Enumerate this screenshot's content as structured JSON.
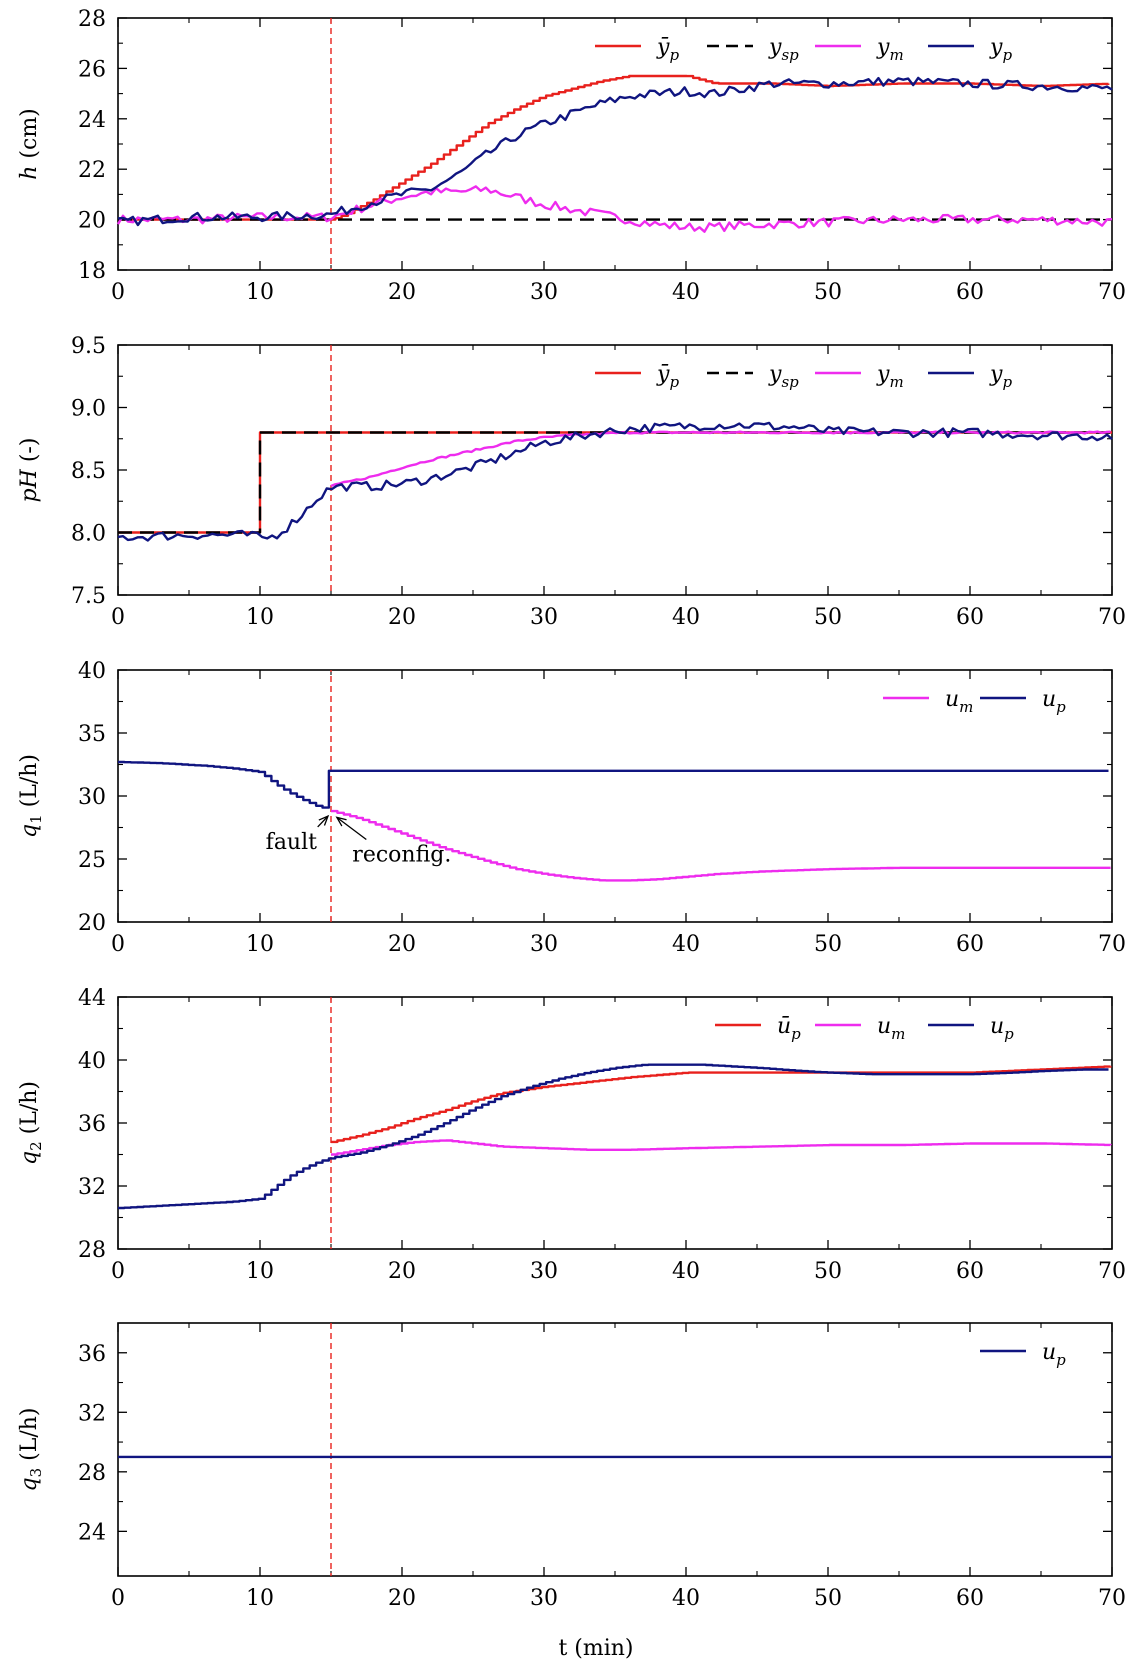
{
  "xlabel": "t (min)",
  "fault_time": 15,
  "colors": {
    "y_bar_p": "#e8211d",
    "y_sp": "#000000",
    "y_m": "#ee2cee",
    "y_p": "#101580",
    "fault_line": "#e8211d",
    "axis": "#000000"
  },
  "chart_data": [
    {
      "type": "line",
      "ylabel": "h (cm)",
      "xlim": [
        0,
        70
      ],
      "ylim": [
        18,
        28
      ],
      "xticks": [
        0,
        10,
        20,
        30,
        40,
        50,
        60,
        70
      ],
      "yticks": [
        18,
        20,
        22,
        24,
        26,
        28
      ],
      "fault_marker": true,
      "series": [
        {
          "name": "ȳp",
          "color": "#e8211d",
          "style": "step",
          "x": [
            0,
            15,
            16,
            18,
            20,
            22,
            24,
            26,
            28,
            30,
            32,
            34,
            36,
            38,
            40,
            42,
            46,
            50,
            55,
            60,
            65,
            70
          ],
          "y": [
            20,
            20,
            20.2,
            20.8,
            21.5,
            22.2,
            23.0,
            23.8,
            24.4,
            24.9,
            25.2,
            25.5,
            25.7,
            25.7,
            25.7,
            25.4,
            25.4,
            25.3,
            25.4,
            25.4,
            25.3,
            25.4
          ]
        },
        {
          "name": "ysp",
          "color": "#000000",
          "style": "dashed",
          "x": [
            0,
            70
          ],
          "y": [
            20,
            20
          ]
        },
        {
          "name": "ym",
          "color": "#ee2cee",
          "style": "noisy",
          "x": [
            0,
            5,
            10,
            15,
            18,
            20,
            22,
            24,
            26,
            28,
            30,
            32,
            34,
            36,
            38,
            40,
            42,
            45,
            50,
            55,
            60,
            65,
            70
          ],
          "y": [
            20,
            20,
            20.1,
            20.1,
            20.6,
            20.9,
            21.1,
            21.1,
            21.2,
            20.9,
            20.6,
            20.4,
            20.2,
            20.0,
            19.8,
            19.7,
            19.7,
            19.8,
            19.9,
            20.0,
            20.0,
            20.0,
            19.9
          ]
        },
        {
          "name": "yp",
          "color": "#101580",
          "style": "noisy",
          "x": [
            0,
            5,
            10,
            15,
            18,
            20,
            22,
            24,
            26,
            28,
            30,
            32,
            34,
            36,
            38,
            40,
            42,
            44,
            46,
            50,
            55,
            60,
            65,
            70
          ],
          "y": [
            19.9,
            20.1,
            20.1,
            20.2,
            20.7,
            21.0,
            21.2,
            21.8,
            22.6,
            23.3,
            23.8,
            24.2,
            24.6,
            24.9,
            25.0,
            25.1,
            25.0,
            25.2,
            25.4,
            25.4,
            25.5,
            25.4,
            25.3,
            25.2
          ]
        }
      ]
    },
    {
      "type": "line",
      "ylabel": "pH (-)",
      "xlim": [
        0,
        70
      ],
      "ylim": [
        7.5,
        9.5
      ],
      "xticks": [
        0,
        10,
        20,
        30,
        40,
        50,
        60,
        70
      ],
      "yticks": [
        7.5,
        8.0,
        8.5,
        9.0,
        9.5
      ],
      "tick_decimals": 1,
      "fault_marker": true,
      "series": [
        {
          "name": "ȳp",
          "color": "#e8211d",
          "style": "solid",
          "x": [
            0,
            10,
            10,
            70
          ],
          "y": [
            8.0,
            8.0,
            8.8,
            8.8
          ]
        },
        {
          "name": "ysp",
          "color": "#000000",
          "style": "dashed",
          "x": [
            0,
            10,
            10,
            70
          ],
          "y": [
            8.0,
            8.0,
            8.8,
            8.8
          ]
        },
        {
          "name": "ym",
          "color": "#ee2cee",
          "style": "smooth",
          "x": [
            15,
            16,
            18,
            20,
            22,
            24,
            26,
            28,
            30,
            32,
            34,
            36,
            40,
            50,
            60,
            70
          ],
          "y": [
            8.37,
            8.4,
            8.45,
            8.52,
            8.58,
            8.63,
            8.68,
            8.73,
            8.76,
            8.78,
            8.79,
            8.8,
            8.8,
            8.8,
            8.8,
            8.8
          ]
        },
        {
          "name": "yp",
          "color": "#101580",
          "style": "noisy",
          "x": [
            0,
            5,
            9.5,
            10,
            11,
            12,
            13,
            14,
            15,
            16,
            18,
            20,
            22,
            24,
            26,
            28,
            30,
            32,
            34,
            36,
            38,
            40,
            42,
            44,
            46,
            48,
            50,
            55,
            60,
            65,
            70
          ],
          "y": [
            7.96,
            7.98,
            7.98,
            7.95,
            7.97,
            8.05,
            8.15,
            8.27,
            8.36,
            8.37,
            8.37,
            8.39,
            8.43,
            8.49,
            8.56,
            8.64,
            8.72,
            8.76,
            8.8,
            8.83,
            8.84,
            8.85,
            8.86,
            8.86,
            8.85,
            8.84,
            8.81,
            8.8,
            8.8,
            8.78,
            8.77
          ]
        }
      ]
    },
    {
      "type": "line",
      "ylabel": "q1 (L/h)",
      "xlim": [
        0,
        70
      ],
      "ylim": [
        20,
        40
      ],
      "xticks": [
        0,
        10,
        20,
        30,
        40,
        50,
        60,
        70
      ],
      "yticks": [
        20,
        25,
        30,
        35,
        40
      ],
      "fault_marker": false,
      "annotations": [
        {
          "text": "fault",
          "x": 15,
          "y": 28.8,
          "label_x": 10.4,
          "label_y": 25.8
        },
        {
          "text": "reconfig.",
          "x": 15.2,
          "y": 28.7,
          "label_x": 16.5,
          "label_y": 24.8
        }
      ],
      "series": [
        {
          "name": "um",
          "color": "#ee2cee",
          "style": "step",
          "x": [
            15,
            17,
            20,
            23,
            26,
            28,
            30,
            32,
            34,
            36,
            38,
            40,
            42,
            45,
            50,
            55,
            60,
            65,
            70
          ],
          "y": [
            28.8,
            28.2,
            27.0,
            25.8,
            24.8,
            24.2,
            23.8,
            23.5,
            23.3,
            23.3,
            23.4,
            23.6,
            23.8,
            24.0,
            24.2,
            24.3,
            24.3,
            24.3,
            24.3
          ]
        },
        {
          "name": "up",
          "color": "#101580",
          "style": "step",
          "x": [
            0,
            3,
            6,
            8,
            10,
            11,
            12,
            13,
            14,
            15,
            15,
            70
          ],
          "y": [
            32.7,
            32.6,
            32.4,
            32.2,
            31.9,
            31.0,
            30.3,
            29.7,
            29.2,
            28.9,
            32.0,
            32.0
          ]
        }
      ]
    },
    {
      "type": "line",
      "ylabel": "q2 (L/h)",
      "xlim": [
        0,
        70
      ],
      "ylim": [
        28,
        44
      ],
      "xticks": [
        0,
        10,
        20,
        30,
        40,
        50,
        60,
        70
      ],
      "yticks": [
        28,
        32,
        36,
        40,
        44
      ],
      "fault_marker": true,
      "series": [
        {
          "name": "ūp",
          "color": "#e8211d",
          "style": "step",
          "x": [
            15,
            15,
            17,
            19,
            21,
            23,
            25,
            27,
            30,
            33,
            36,
            40,
            45,
            50,
            55,
            60,
            65,
            70
          ],
          "y": [
            33.8,
            34.8,
            35.2,
            35.7,
            36.3,
            36.8,
            37.4,
            37.9,
            38.3,
            38.6,
            38.9,
            39.2,
            39.2,
            39.2,
            39.2,
            39.2,
            39.4,
            39.6
          ]
        },
        {
          "name": "um",
          "color": "#ee2cee",
          "style": "step",
          "x": [
            15,
            17,
            19,
            21,
            23,
            25,
            27,
            30,
            33,
            36,
            40,
            45,
            50,
            55,
            60,
            65,
            70
          ],
          "y": [
            34.0,
            34.3,
            34.6,
            34.8,
            34.9,
            34.7,
            34.5,
            34.4,
            34.3,
            34.3,
            34.4,
            34.5,
            34.6,
            34.6,
            34.7,
            34.7,
            34.6
          ]
        },
        {
          "name": "up",
          "color": "#101580",
          "style": "step",
          "x": [
            0,
            2,
            4,
            6,
            8,
            10,
            11,
            12,
            13,
            14,
            15,
            17,
            19,
            21,
            23,
            25,
            27,
            29,
            31,
            33,
            35,
            37,
            39,
            41,
            43,
            45,
            48,
            50,
            53,
            55,
            58,
            60,
            63,
            65,
            68,
            70
          ],
          "y": [
            30.6,
            30.7,
            30.8,
            30.9,
            31.0,
            31.2,
            31.9,
            32.6,
            33.1,
            33.5,
            33.8,
            34.1,
            34.6,
            35.2,
            36.0,
            36.9,
            37.7,
            38.3,
            38.8,
            39.2,
            39.5,
            39.7,
            39.7,
            39.7,
            39.6,
            39.5,
            39.3,
            39.2,
            39.1,
            39.1,
            39.1,
            39.1,
            39.2,
            39.3,
            39.4,
            39.4
          ]
        }
      ]
    },
    {
      "type": "line",
      "ylabel": "q3 (L/h)",
      "xlim": [
        0,
        70
      ],
      "ylim": [
        21,
        38
      ],
      "xticks": [
        0,
        10,
        20,
        30,
        40,
        50,
        60,
        70
      ],
      "yticks": [
        24,
        28,
        32,
        36
      ],
      "fault_marker": true,
      "series": [
        {
          "name": "up",
          "color": "#101580",
          "style": "solid",
          "x": [
            0,
            70
          ],
          "y": [
            29,
            29
          ]
        }
      ]
    }
  ]
}
